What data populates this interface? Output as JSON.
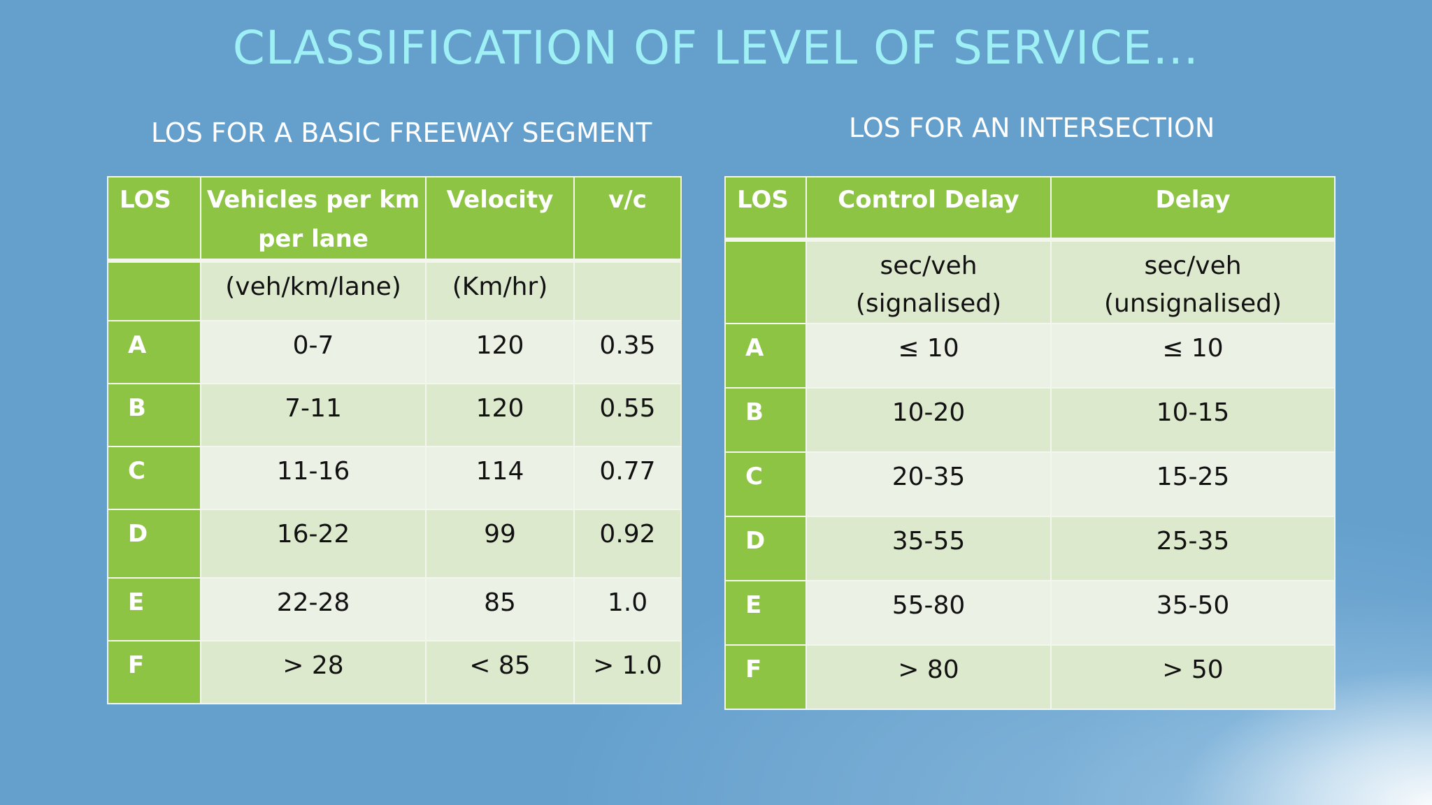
{
  "slide": {
    "title": "CLASSIFICATION OF LEVEL OF SERVICE…"
  },
  "freeway": {
    "subtitle": "LOS FOR A BASIC FREEWAY SEGMENT",
    "headers": [
      "LOS",
      "Vehicles per km per lane",
      "Velocity",
      "v/c"
    ],
    "units": [
      "",
      "(veh/km/lane)",
      "(Km/hr)",
      ""
    ],
    "rows": [
      [
        "A",
        "0-7",
        "120",
        "0.35"
      ],
      [
        "B",
        "7-11",
        "120",
        "0.55"
      ],
      [
        "C",
        "11-16",
        "114",
        "0.77"
      ],
      [
        "D",
        "16-22",
        "99",
        "0.92"
      ],
      [
        "E",
        "22-28",
        "85",
        "1.0"
      ],
      [
        "F",
        "> 28",
        "< 85",
        "> 1.0"
      ]
    ]
  },
  "intersection": {
    "subtitle": "LOS FOR AN INTERSECTION",
    "headers": [
      "LOS",
      "Control Delay",
      "Delay"
    ],
    "units": [
      "",
      "sec/veh (signalised)",
      "sec/veh (unsignalised)"
    ],
    "rows": [
      [
        "A",
        "≤ 10",
        "≤ 10"
      ],
      [
        "B",
        "10-20",
        "10-15"
      ],
      [
        "C",
        "20-35",
        "15-25"
      ],
      [
        "D",
        "35-55",
        "25-35"
      ],
      [
        "E",
        "55-80",
        "35-50"
      ],
      [
        "F",
        "> 80",
        "> 50"
      ]
    ]
  },
  "colors": {
    "background": "#65a0cd",
    "title": "#9ff0f5",
    "header_green": "#8dc443",
    "cell_light": "#ecf1e5",
    "cell_mid": "#dde9cd"
  }
}
